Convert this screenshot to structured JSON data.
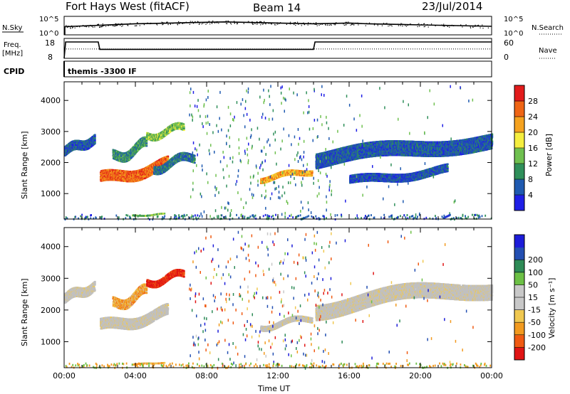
{
  "header": {
    "title": "Fort Hays West (fitACF)",
    "beam": "Beam 14",
    "date": "23/Jul/2014"
  },
  "colors": {
    "power_scale": [
      "#1f1fe6",
      "#1f5ab0",
      "#2f8f5a",
      "#6fc04f",
      "#f5ee3f",
      "#f5a21f",
      "#ef6515",
      "#e21b1b"
    ],
    "velocity_scale": [
      "#e01414",
      "#f05a12",
      "#f29a1f",
      "#f0c850",
      "#c8c8c8",
      "#c8c8c8",
      "#6cc045",
      "#2e8b57",
      "#234fb2",
      "#1c1cd9"
    ],
    "ground_scatter": "#c0c0c0",
    "line": "#000000"
  },
  "chart_data": [
    {
      "type": "line",
      "name": "noise-panel",
      "left_label": "N.Sky",
      "right_label": "N.Search",
      "y_ticks_left": [
        "10^5",
        "10^0"
      ],
      "y_ticks_right": [
        "10^5",
        "10^0"
      ],
      "x": [
        "00:00",
        "01:00",
        "02:00",
        "03:00",
        "04:00",
        "05:00",
        "06:00",
        "07:00",
        "08:00",
        "09:00",
        "10:00",
        "11:00",
        "12:00",
        "13:00",
        "14:00",
        "15:00",
        "16:00",
        "17:00",
        "18:00",
        "19:00",
        "20:00",
        "21:00",
        "22:00",
        "23:00",
        "24:00"
      ],
      "series": [
        {
          "name": "N.Sky",
          "values": [
            2.2,
            2.4,
            2.6,
            2.8,
            3.0,
            3.1,
            3.2,
            3.3,
            3.4,
            3.5,
            3.4,
            3.3,
            3.2,
            3.1,
            3.0,
            3.1,
            3.2,
            3.0,
            2.9,
            2.8,
            2.7,
            2.6,
            2.5,
            2.4,
            2.3
          ]
        }
      ],
      "ylim": [
        0,
        5
      ]
    },
    {
      "type": "line",
      "name": "frequency-panel",
      "left_label": "Freq.",
      "left_units": "[MHz]",
      "right_label": "Nave",
      "y_ticks_left": [
        "18",
        "8"
      ],
      "y_ticks_right": [
        "60",
        "0"
      ],
      "series": [
        {
          "name": "Freq.",
          "x": [
            "00:00",
            "00:05",
            "01:55",
            "02:00",
            "14:00",
            "14:05",
            "24:00"
          ],
          "values": [
            8,
            16.2,
            16.2,
            12.5,
            12.5,
            16.2,
            16.2
          ]
        },
        {
          "name": "Nave",
          "x": [
            "00:00",
            "24:00"
          ],
          "values": [
            28,
            28
          ]
        }
      ],
      "ylim_left": [
        8,
        18
      ],
      "ylim_right": [
        0,
        60
      ]
    },
    {
      "type": "table",
      "name": "cpid-strip",
      "left_label": "CPID",
      "entries": [
        {
          "start": "00:00",
          "label": "themis -3300 IF"
        }
      ]
    },
    {
      "type": "heatmap",
      "name": "power-panel",
      "ylabel": "Slant Range [km]",
      "colorbar_label": "Power [dB]",
      "colorbar_ticks": [
        "4",
        "8",
        "12",
        "16",
        "20",
        "24",
        "28"
      ],
      "y_ticks": [
        "1000",
        "2000",
        "3000",
        "4000"
      ],
      "ylim": [
        180,
        4600
      ],
      "xlim": [
        "00:00",
        "24:00"
      ],
      "features": [
        {
          "t0": 0.0,
          "t1": 1.7,
          "r0": 2200,
          "r1": 3000,
          "power": 6
        },
        {
          "t0": 2.0,
          "t1": 5.8,
          "r0": 1250,
          "r1": 2200,
          "power": 26
        },
        {
          "t0": 2.7,
          "t1": 4.6,
          "r0": 2000,
          "r1": 2800,
          "power": 10
        },
        {
          "t0": 4.6,
          "t1": 6.7,
          "r0": 2750,
          "r1": 3300,
          "power": 14
        },
        {
          "t0": 5.0,
          "t1": 7.3,
          "r0": 1700,
          "r1": 2400,
          "power": 8
        },
        {
          "t0": 11.0,
          "t1": 13.9,
          "r0": 1400,
          "r1": 1900,
          "power": 22
        },
        {
          "t0": 14.1,
          "t1": 24.0,
          "r0": 1800,
          "r1": 3100,
          "power": 6
        },
        {
          "t0": 16.0,
          "t1": 21.5,
          "r0": 1250,
          "r1": 2000,
          "power": 5
        },
        {
          "t0": 3.8,
          "t1": 5.6,
          "r0": 300,
          "r1": 420,
          "power": 14
        }
      ]
    },
    {
      "type": "heatmap",
      "name": "velocity-panel",
      "ylabel": "Slant Range [km]",
      "colorbar_label": "Velocity [m s⁻¹]",
      "colorbar_ticks": [
        "-200",
        "-100",
        "-50",
        "-15",
        "15",
        "50",
        "100",
        "200"
      ],
      "y_ticks": [
        "1000",
        "2000",
        "3000",
        "4000"
      ],
      "ylim": [
        180,
        4600
      ],
      "xlim": [
        "00:00",
        "24:00"
      ],
      "xlabel": "Time UT",
      "x_ticks": [
        "00:00",
        "04:00",
        "08:00",
        "12:00",
        "16:00",
        "20:00",
        "00:00"
      ],
      "features": [
        {
          "t0": 0.0,
          "t1": 1.7,
          "r0": 2200,
          "r1": 3000,
          "velocity": 0,
          "ground_scatter": true
        },
        {
          "t0": 2.0,
          "t1": 5.8,
          "r0": 1250,
          "r1": 2200,
          "velocity": 0,
          "ground_scatter": true
        },
        {
          "t0": 2.7,
          "t1": 4.6,
          "r0": 2000,
          "r1": 2800,
          "velocity": -60
        },
        {
          "t0": 4.6,
          "t1": 6.7,
          "r0": 2750,
          "r1": 3300,
          "velocity": -220
        },
        {
          "t0": 11.0,
          "t1": 13.9,
          "r0": 1400,
          "r1": 1900,
          "velocity": 0,
          "ground_scatter": true
        },
        {
          "t0": 14.1,
          "t1": 24.0,
          "r0": 1800,
          "r1": 3100,
          "velocity": 0,
          "ground_scatter": true
        },
        {
          "t0": 3.8,
          "t1": 5.6,
          "r0": 300,
          "r1": 420,
          "velocity": -60
        }
      ]
    }
  ]
}
